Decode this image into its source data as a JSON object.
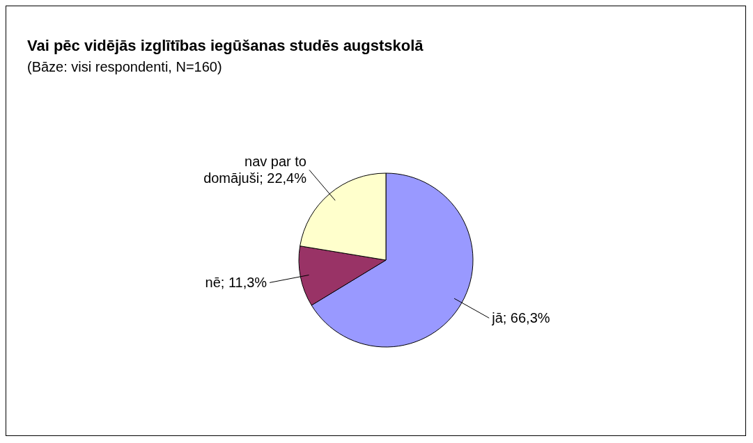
{
  "chart_data": {
    "type": "pie",
    "title": "Vai pēc vidējās izglītības iegūšanas studēs augstskolā",
    "subtitle": "(Bāze: visi respondenti, N=160)",
    "categories": [
      "jā",
      "nē",
      "nav par to domājuši"
    ],
    "values": [
      66.3,
      11.3,
      22.4
    ],
    "colors": [
      "#9999ff",
      "#993366",
      "#ffffcc"
    ],
    "value_labels": [
      "66,3%",
      "11,3%",
      "22,4%"
    ]
  }
}
